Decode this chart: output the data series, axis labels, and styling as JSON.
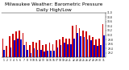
{
  "title": "Milwaukee Weather: Barometric Pressure\nDaily High/Low",
  "title_fontsize": 4.2,
  "ylim": [
    29.0,
    31.0
  ],
  "yticks": [
    29.2,
    29.4,
    29.6,
    29.8,
    30.0,
    30.2,
    30.4,
    30.6,
    30.8,
    31.0
  ],
  "ytick_labels": [
    "29.2",
    "29.4",
    "29.6",
    "29.8",
    "30.0",
    "30.2",
    "30.4",
    "30.6",
    "30.8",
    "31.0"
  ],
  "bar_width": 0.42,
  "high_color": "#cc0000",
  "low_color": "#0000cc",
  "background_color": "#ffffff",
  "x_labels": [
    "1",
    "2",
    "3",
    "4",
    "5",
    "6",
    "7",
    "8",
    "9",
    "10",
    "11",
    "12",
    "13",
    "14",
    "15",
    "16",
    "17",
    "18",
    "19",
    "20",
    "21",
    "22",
    "23",
    "24",
    "25",
    "26",
    "27",
    "28",
    "29",
    "30",
    "31"
  ],
  "highs": [
    29.85,
    29.5,
    29.95,
    30.05,
    30.15,
    30.2,
    30.1,
    29.7,
    29.55,
    29.7,
    29.65,
    29.75,
    29.55,
    29.6,
    29.65,
    29.6,
    29.75,
    29.8,
    29.9,
    29.85,
    29.85,
    30.4,
    30.45,
    30.3,
    30.2,
    30.15,
    30.0,
    29.9,
    29.8,
    29.85,
    30.5
  ],
  "lows": [
    29.35,
    28.9,
    29.45,
    29.75,
    29.85,
    29.8,
    29.55,
    29.35,
    29.2,
    29.4,
    29.35,
    29.35,
    29.25,
    29.3,
    29.3,
    29.3,
    29.45,
    29.55,
    29.65,
    29.6,
    29.6,
    29.85,
    30.1,
    29.95,
    29.9,
    29.8,
    29.75,
    29.55,
    29.5,
    29.55,
    30.0
  ]
}
